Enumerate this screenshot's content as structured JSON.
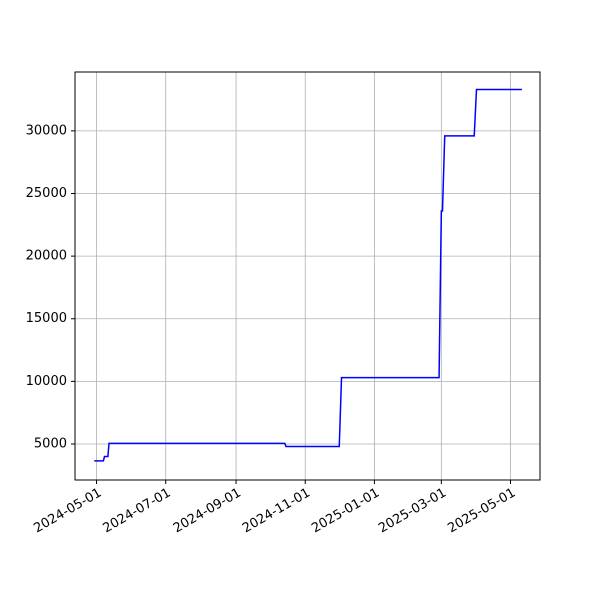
{
  "chart_data": {
    "type": "line",
    "x": [
      "2024-04-29",
      "2024-05-07",
      "2024-05-08",
      "2024-05-11",
      "2024-05-12",
      "2024-10-14",
      "2024-10-15",
      "2024-12-01",
      "2024-12-03",
      "2025-02-27",
      "2025-03-01",
      "2025-03-02",
      "2025-03-04",
      "2025-03-30",
      "2025-04-01",
      "2025-05-11"
    ],
    "series": [
      {
        "color": "#0000ff",
        "values": [
          3650,
          3650,
          4000,
          4000,
          5050,
          5050,
          4800,
          4800,
          10300,
          10300,
          23600,
          23600,
          29600,
          29600,
          33300,
          33300
        ]
      }
    ],
    "xlim": [
      "2024-04-12",
      "2025-05-27"
    ],
    "xticks": [
      "2024-05-01",
      "2024-07-01",
      "2024-09-01",
      "2024-11-01",
      "2025-01-01",
      "2025-03-01",
      "2025-05-01"
    ],
    "ylim": [
      2125,
      34700
    ],
    "yticks": [
      5000,
      10000,
      15000,
      20000,
      25000,
      30000
    ],
    "grid": true
  }
}
